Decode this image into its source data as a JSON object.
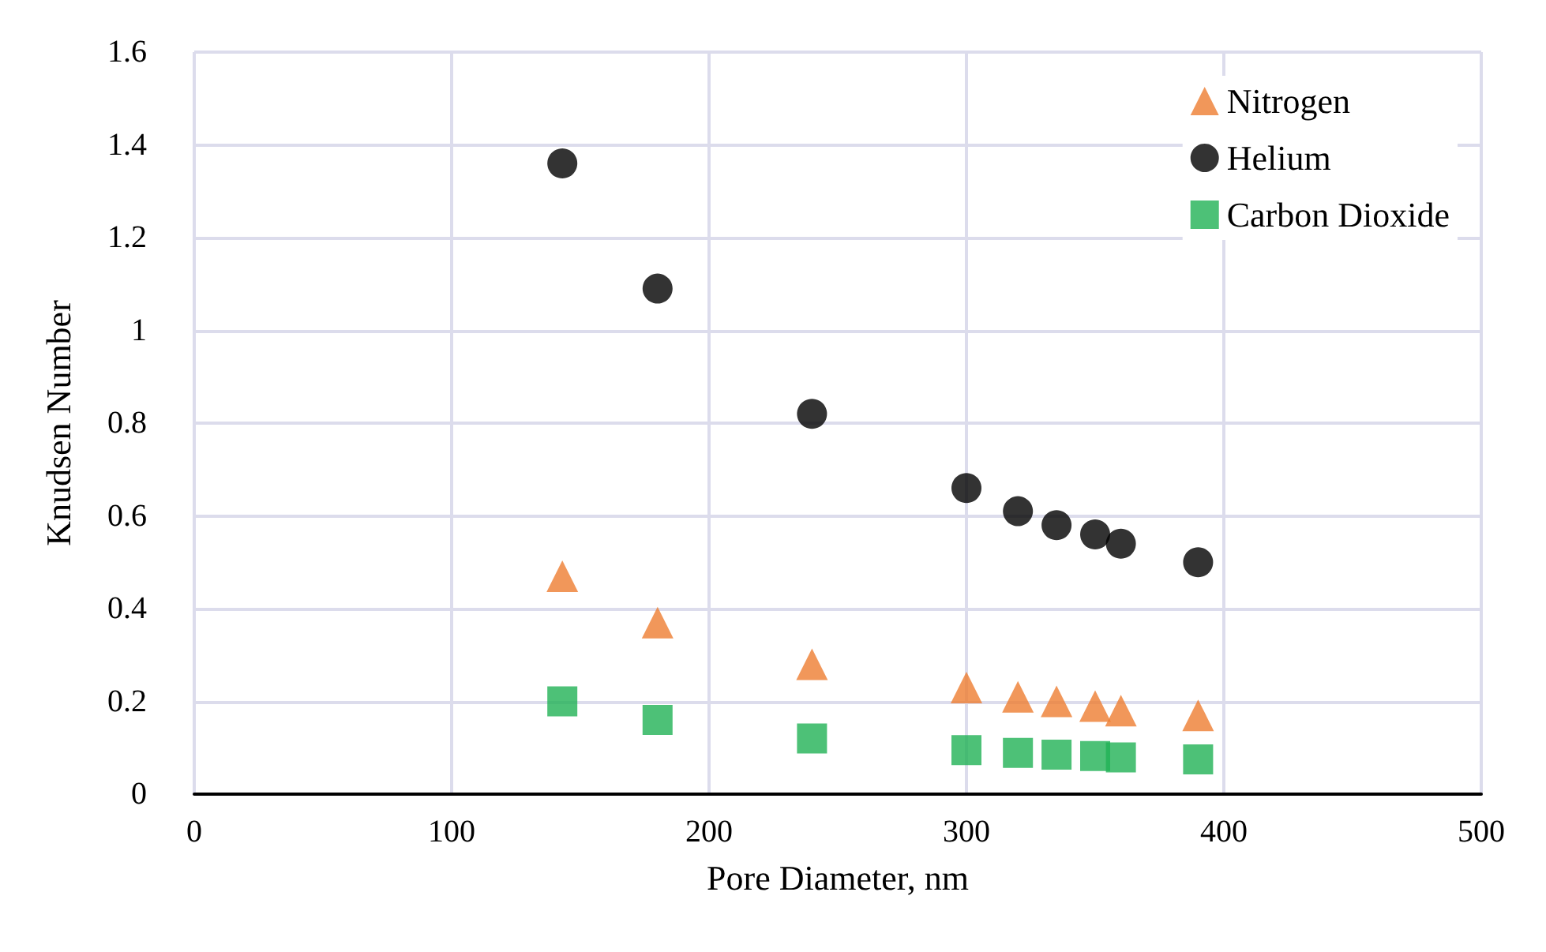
{
  "chart_data": {
    "type": "scatter",
    "xlabel": "Pore Diameter, nm",
    "ylabel": "Knudsen Number",
    "x": [
      143,
      180,
      240,
      300,
      320,
      335,
      350,
      360,
      390
    ],
    "series": [
      {
        "name": "Nitrogen",
        "color": "#ed7d31",
        "marker": "triangle",
        "values": [
          0.47,
          0.37,
          0.28,
          0.23,
          0.21,
          0.2,
          0.19,
          0.18,
          0.17
        ]
      },
      {
        "name": "Helium",
        "color": "#000000",
        "marker": "circle",
        "values": [
          1.36,
          1.09,
          0.82,
          0.66,
          0.61,
          0.58,
          0.56,
          0.54,
          0.5
        ]
      },
      {
        "name": "Carbon Dioxide",
        "color": "#21b155",
        "marker": "square",
        "values": [
          0.2,
          0.16,
          0.12,
          0.095,
          0.089,
          0.085,
          0.082,
          0.079,
          0.075
        ]
      }
    ],
    "xlim": [
      0,
      500
    ],
    "xticks": [
      0,
      100,
      200,
      300,
      400,
      500
    ],
    "ylim": [
      0,
      1.6
    ],
    "yticks": [
      0,
      0.2,
      0.4,
      0.6,
      0.8,
      1,
      1.2,
      1.4,
      1.6
    ],
    "grid": true,
    "legend": "top right"
  }
}
